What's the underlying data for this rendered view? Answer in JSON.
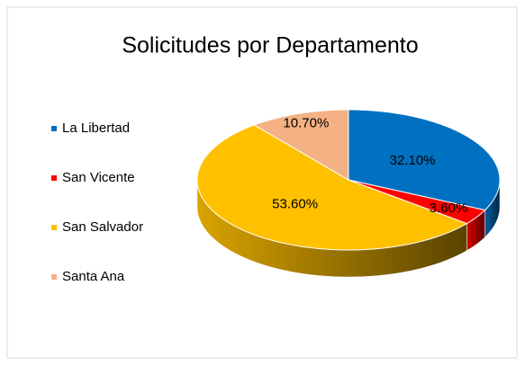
{
  "chart_data": {
    "type": "pie",
    "title": "Solicitudes por Departamento",
    "categories": [
      "La Libertad",
      "San Vicente",
      "San Salvador",
      "Santa Ana"
    ],
    "values": [
      32.1,
      3.6,
      53.6,
      10.7
    ],
    "value_labels": [
      "32.10%",
      "3.60%",
      "53.60%",
      "10.70%"
    ],
    "colors": [
      "#0070c0",
      "#ff0000",
      "#ffc000",
      "#f4b183"
    ],
    "legend": "left"
  }
}
